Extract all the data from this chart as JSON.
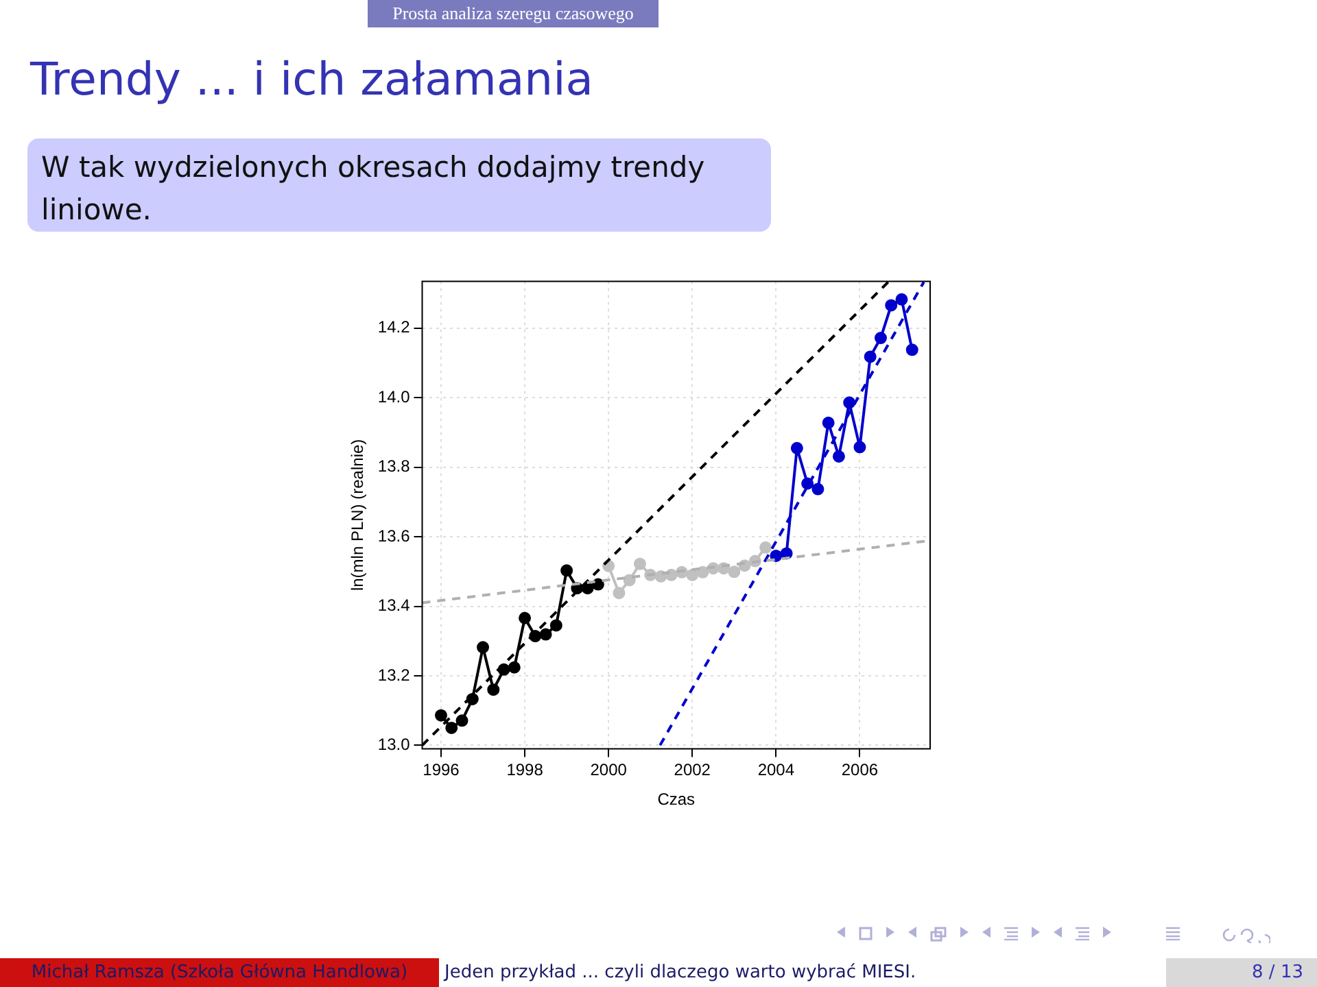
{
  "chart_data": {
    "type": "line",
    "title": "Trendy ... i ich załamania",
    "subtitle": "W tak wydzielonych okresach dodajmy trendy liniowe.",
    "xlabel": "Czas",
    "ylabel": "ln(mln PLN) (realnie)",
    "annotations": [
      "Prosta analiza szeregu czasowego",
      "Michał Ramsza (Szkoła Główna Handlowa)",
      "Jeden przykład ... czyli dlaczego warto wybrać MIESI.",
      "8 / 13"
    ],
    "xlim": [
      1995.55,
      2007.68
    ],
    "ylim": [
      12.99,
      14.335
    ],
    "xticks": [
      1996,
      1998,
      2000,
      2002,
      2004,
      2006
    ],
    "yticks": [
      {
        "value": 13,
        "label": "13.0"
      },
      13.2,
      13.4,
      13.6,
      13.8,
      {
        "value": 14,
        "label": "14.0"
      },
      14.2
    ],
    "grid": true,
    "legend": false,
    "marker": "circle",
    "line_style": "solid",
    "series": [
      {
        "color": "#b0b0b0",
        "line_style": "dashed",
        "marker": "none",
        "x": [
          1995.55,
          2007.68
        ],
        "values": [
          13.41,
          13.589
        ]
      },
      {
        "color": "#000000",
        "line_style": "dashed",
        "marker": "none",
        "x": [
          1995.55,
          2006.68
        ],
        "values": [
          13.0,
          14.333
        ]
      },
      {
        "color": "#0000cc",
        "line_style": "dashed",
        "marker": "none",
        "x": [
          2001.23,
          2007.53
        ],
        "values": [
          13.0,
          14.333
        ]
      },
      {
        "color": "#000000",
        "x": [
          1996,
          1996.25,
          1996.5,
          1996.75,
          1997,
          1997.25,
          1997.5,
          1997.75,
          1998,
          1998.25,
          1998.5,
          1998.75,
          1999,
          1999.25,
          1999.5,
          1999.75
        ],
        "values": [
          13.086,
          13.05,
          13.071,
          13.133,
          13.282,
          13.16,
          13.218,
          13.224,
          13.366,
          13.314,
          13.319,
          13.345,
          13.503,
          13.452,
          13.452,
          13.463
        ]
      },
      {
        "color": "#c0c0c0",
        "x": [
          2000,
          2000.25,
          2000.5,
          2000.75,
          2001,
          2001.25,
          2001.5,
          2001.75,
          2002,
          2002.25,
          2002.5,
          2002.75,
          2003,
          2003.25,
          2003.5,
          2003.75
        ],
        "values": [
          13.516,
          13.438,
          13.475,
          13.522,
          13.49,
          13.486,
          13.49,
          13.498,
          13.49,
          13.498,
          13.509,
          13.509,
          13.499,
          13.517,
          13.53,
          13.569
        ]
      },
      {
        "color": "#0000cc",
        "x": [
          2004,
          2004.25,
          2004.5,
          2004.75,
          2005,
          2005.25,
          2005.5,
          2005.75,
          2006,
          2006.25,
          2006.5,
          2006.75,
          2007,
          2007.25
        ],
        "values": [
          13.545,
          13.552,
          13.855,
          13.753,
          13.737,
          13.928,
          13.831,
          13.986,
          13.858,
          14.118,
          14.172,
          14.266,
          14.283,
          14.138
        ]
      }
    ]
  }
}
